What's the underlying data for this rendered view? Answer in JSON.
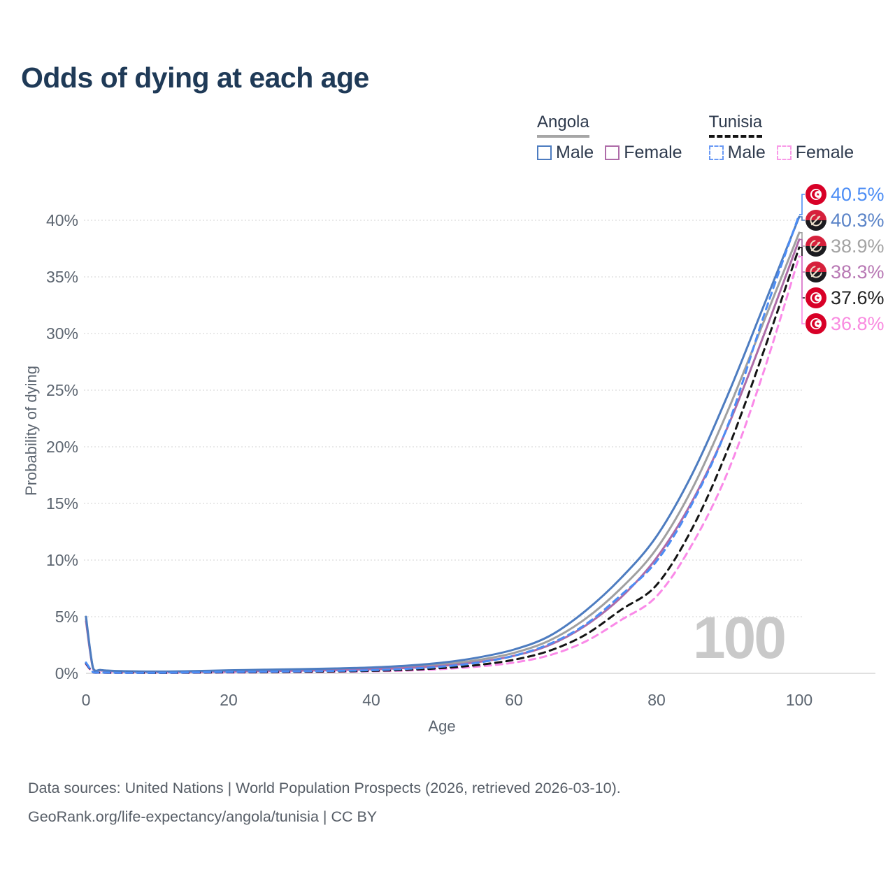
{
  "title": "Odds of dying at each age",
  "legend": {
    "groups": [
      {
        "country": "Angola",
        "line_style": "solid",
        "underline_color": "#a6a6a6",
        "items": [
          {
            "label": "Male",
            "color": "#4d7cc0",
            "dash": false
          },
          {
            "label": "Female",
            "color": "#ae6ca8",
            "dash": false
          }
        ]
      },
      {
        "country": "Tunisia",
        "line_style": "dashed",
        "underline_color": "#141414",
        "items": [
          {
            "label": "Male",
            "color": "#6a9af5",
            "dash": true
          },
          {
            "label": "Female",
            "color": "#f99ae8",
            "dash": true
          }
        ]
      }
    ]
  },
  "axes": {
    "y_title": "Probability of dying",
    "x_title": "Age"
  },
  "watermark": "100",
  "end_labels": [
    {
      "value": "40.5%",
      "series": "Tunisia Male",
      "flag": "tunisia",
      "color": "#4c8df5"
    },
    {
      "value": "40.3%",
      "series": "Angola Male",
      "flag": "angola",
      "color": "#5b84c8"
    },
    {
      "value": "38.9%",
      "series": "Angola Both sexes",
      "flag": "angola",
      "color": "#a3a3a3"
    },
    {
      "value": "38.3%",
      "series": "Angola Female",
      "flag": "angola",
      "color": "#b878b4"
    },
    {
      "value": "37.6%",
      "series": "Tunisia Both sexes",
      "flag": "tunisia",
      "color": "#222222"
    },
    {
      "value": "36.8%",
      "series": "Tunisia Female",
      "flag": "tunisia",
      "color": "#f98ae0"
    }
  ],
  "footer": {
    "line1": "Data sources: United Nations | World Population Prospects (2026, retrieved 2026-03-10).",
    "line2": "GeoRank.org/life-expectancy/angola/tunisia | CC BY"
  },
  "chart_data": {
    "type": "line",
    "title": "Odds of dying at each age",
    "xlabel": "Age",
    "ylabel": "Probability of dying",
    "x": [
      0,
      1,
      2,
      3,
      5,
      10,
      15,
      20,
      25,
      30,
      35,
      40,
      45,
      50,
      55,
      60,
      65,
      70,
      75,
      80,
      85,
      90,
      95,
      100
    ],
    "xlim": [
      0,
      100
    ],
    "ylim_percent": [
      0,
      42
    ],
    "xticks": [
      0,
      20,
      40,
      60,
      80,
      100
    ],
    "yticks_percent": [
      0,
      5,
      10,
      15,
      20,
      25,
      30,
      35,
      40
    ],
    "grid": "horizontal-dotted",
    "legend_position": "top-right",
    "series": [
      {
        "name": "Angola Male",
        "country": "Angola",
        "sex": "Male",
        "color": "#4d7cc0",
        "dash": false,
        "values_percent": [
          5.0,
          0.45,
          0.3,
          0.25,
          0.2,
          0.16,
          0.2,
          0.27,
          0.32,
          0.37,
          0.43,
          0.52,
          0.68,
          0.95,
          1.4,
          2.1,
          3.3,
          5.5,
          8.4,
          12.1,
          17.6,
          24.6,
          32.4,
          40.3
        ]
      },
      {
        "name": "Angola Both sexes",
        "country": "Angola",
        "sex": "Both",
        "color": "#a0a0a0",
        "dash": false,
        "values_percent": [
          4.8,
          0.42,
          0.28,
          0.23,
          0.18,
          0.14,
          0.17,
          0.22,
          0.26,
          0.3,
          0.35,
          0.43,
          0.57,
          0.8,
          1.18,
          1.8,
          2.9,
          4.8,
          7.5,
          11.0,
          16.3,
          23.2,
          31.0,
          38.9
        ]
      },
      {
        "name": "Angola Female",
        "country": "Angola",
        "sex": "Female",
        "color": "#ae6ca8",
        "dash": false,
        "values_percent": [
          4.6,
          0.4,
          0.26,
          0.21,
          0.16,
          0.12,
          0.13,
          0.16,
          0.2,
          0.24,
          0.28,
          0.35,
          0.47,
          0.66,
          1.0,
          1.55,
          2.5,
          4.2,
          6.7,
          10.2,
          15.2,
          21.8,
          29.8,
          38.3
        ]
      },
      {
        "name": "Tunisia Male",
        "country": "Tunisia",
        "sex": "Male",
        "color": "#4c8df5",
        "dash": true,
        "values_percent": [
          0.95,
          0.1,
          0.07,
          0.06,
          0.05,
          0.05,
          0.08,
          0.12,
          0.15,
          0.18,
          0.22,
          0.28,
          0.4,
          0.6,
          0.95,
          1.55,
          2.6,
          4.3,
          6.9,
          9.9,
          15.0,
          21.9,
          31.5,
          40.5
        ]
      },
      {
        "name": "Tunisia Both sexes",
        "country": "Tunisia",
        "sex": "Both",
        "color": "#141414",
        "dash": true,
        "values_percent": [
          0.88,
          0.09,
          0.06,
          0.05,
          0.05,
          0.04,
          0.06,
          0.09,
          0.11,
          0.14,
          0.17,
          0.22,
          0.31,
          0.47,
          0.74,
          1.2,
          2.0,
          3.4,
          5.6,
          7.8,
          12.8,
          19.8,
          28.4,
          37.6
        ]
      },
      {
        "name": "Tunisia Female",
        "country": "Tunisia",
        "sex": "Female",
        "color": "#fa8ae8",
        "dash": true,
        "values_percent": [
          0.8,
          0.08,
          0.05,
          0.05,
          0.04,
          0.04,
          0.05,
          0.07,
          0.09,
          0.11,
          0.14,
          0.18,
          0.25,
          0.38,
          0.6,
          0.95,
          1.6,
          2.8,
          4.7,
          6.8,
          11.4,
          17.8,
          26.6,
          36.8
        ]
      }
    ],
    "end_values_percent": {
      "Tunisia Male": 40.5,
      "Angola Male": 40.3,
      "Angola Both sexes": 38.9,
      "Angola Female": 38.3,
      "Tunisia Both sexes": 37.6,
      "Tunisia Female": 36.8
    }
  }
}
